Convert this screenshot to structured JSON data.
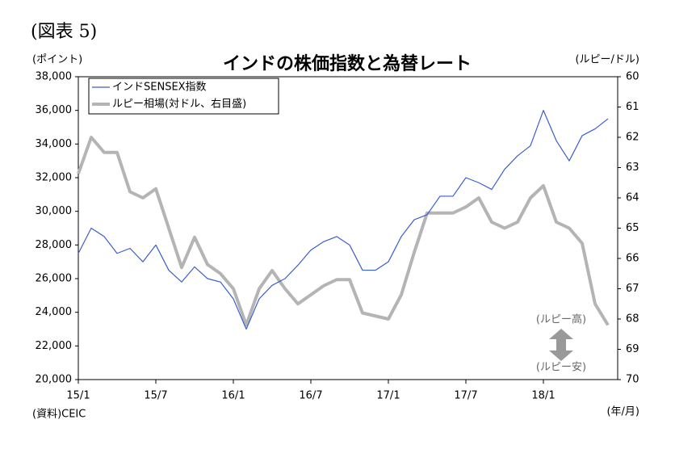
{
  "chart_data": {
    "type": "line",
    "figure_label": "(図表 5)",
    "title": "インドの株価指数と為替レート",
    "y_label": "(ポイント)",
    "y2_label": "(ルピー/ドル)",
    "source": "(資料)CEIC",
    "x_label": "(年/月)",
    "annotations": [
      "(ルピー高)",
      "(ルピー安)"
    ],
    "x": [
      "15/1",
      "15/2",
      "15/3",
      "15/4",
      "15/5",
      "15/6",
      "15/7",
      "15/8",
      "15/9",
      "15/10",
      "15/11",
      "15/12",
      "16/1",
      "16/2",
      "16/3",
      "16/4",
      "16/5",
      "16/6",
      "16/7",
      "16/8",
      "16/9",
      "16/10",
      "16/11",
      "16/12",
      "17/1",
      "17/2",
      "17/3",
      "17/4",
      "17/5",
      "17/6",
      "17/7",
      "17/8",
      "17/9",
      "17/10",
      "17/11",
      "17/12",
      "18/1",
      "18/2",
      "18/3",
      "18/4",
      "18/5",
      "18/6"
    ],
    "xticks": [
      "15/1",
      "15/7",
      "16/1",
      "16/7",
      "17/1",
      "17/7",
      "18/1"
    ],
    "ylim": [
      20000,
      38000
    ],
    "yticks": [
      {
        "value": 20000,
        "label": "20,000"
      },
      {
        "value": 22000,
        "label": "22,000"
      },
      {
        "value": 24000,
        "label": "24,000"
      },
      {
        "value": 26000,
        "label": "26,000"
      },
      {
        "value": 28000,
        "label": "28,000"
      },
      {
        "value": 30000,
        "label": "30,000"
      },
      {
        "value": 32000,
        "label": "32,000"
      },
      {
        "value": 34000,
        "label": "34,000"
      },
      {
        "value": 36000,
        "label": "36,000"
      },
      {
        "value": 38000,
        "label": "38,000"
      }
    ],
    "y2lim": [
      70,
      60
    ],
    "y2ticks": [
      70,
      69,
      68,
      67,
      66,
      65,
      64,
      63,
      62,
      61,
      60
    ],
    "legend": "upper left",
    "series": [
      {
        "name": "インドSENSEX指数",
        "color": "#3a5fcd",
        "values": [
          27500,
          29000,
          28500,
          27500,
          27800,
          27000,
          28000,
          26500,
          25800,
          26700,
          26000,
          25800,
          24800,
          23000,
          24800,
          25600,
          26000,
          26800,
          27700,
          28200,
          28500,
          28000,
          26500,
          26500,
          27000,
          28500,
          29500,
          29800,
          30900,
          30900,
          32000,
          31700,
          31300,
          32500,
          33300,
          33900,
          36000,
          34200,
          33000,
          34500,
          34900,
          35500
        ]
      },
      {
        "name": "ルピー相場(対ドル、右目盛)",
        "color": "#b4b4b4",
        "axis": "y2",
        "values": [
          63.2,
          62.0,
          62.5,
          62.5,
          63.8,
          64.0,
          63.7,
          65.0,
          66.3,
          65.3,
          66.2,
          66.5,
          67.0,
          68.2,
          67.0,
          66.4,
          67.0,
          67.5,
          67.2,
          66.9,
          66.7,
          66.7,
          67.8,
          67.9,
          68.0,
          67.2,
          65.8,
          64.5,
          64.5,
          64.5,
          64.3,
          64.0,
          64.8,
          65.0,
          64.8,
          64.0,
          63.6,
          64.8,
          65.0,
          65.5,
          67.5,
          68.2
        ]
      }
    ]
  }
}
